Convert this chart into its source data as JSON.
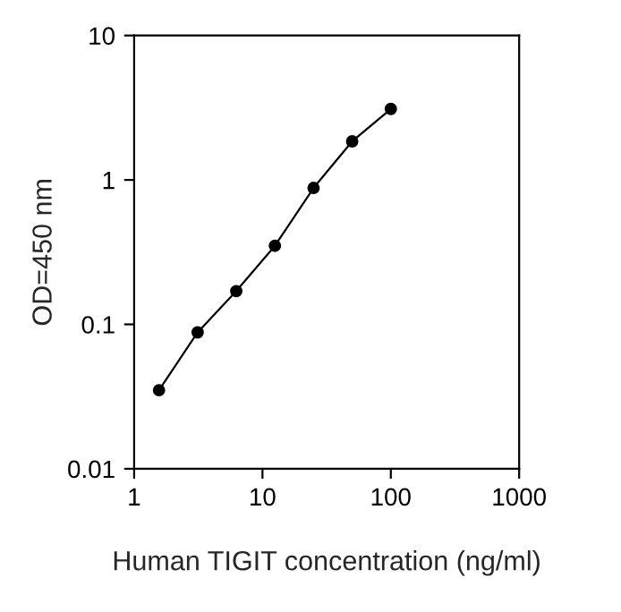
{
  "chart_data": {
    "type": "line",
    "xlabel": "Human TIGIT concentration (ng/ml)",
    "ylabel": "OD=450 nm",
    "x": [
      1.5625,
      3.125,
      6.25,
      12.5,
      25,
      50,
      100
    ],
    "series": [
      {
        "color": "#000000",
        "values": [
          0.035,
          0.088,
          0.17,
          0.35,
          0.88,
          1.85,
          3.1
        ]
      }
    ],
    "log": "xy",
    "xlim": [
      1,
      1000
    ],
    "ylim": [
      0.01,
      10
    ],
    "xticks": [
      1,
      10,
      100,
      1000
    ],
    "yticks": [
      0.01,
      0.1,
      1,
      10
    ],
    "marker": "circle",
    "line_style": "solid",
    "grid": false,
    "legend": false
  }
}
